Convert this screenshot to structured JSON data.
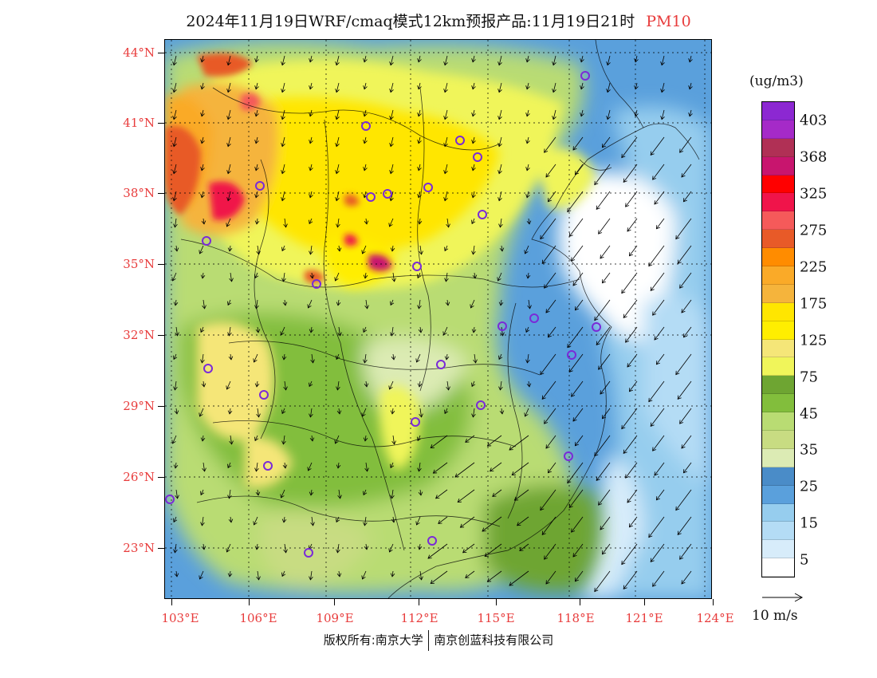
{
  "title": {
    "main": "2024年11月19日WRF/cmaq模式12km预报产品:11月19日21时",
    "pollutant": "PM10"
  },
  "map": {
    "lat_labels": [
      "44°N",
      "41°N",
      "38°N",
      "35°N",
      "32°N",
      "29°N",
      "26°N",
      "23°N"
    ],
    "lon_labels": [
      "103°E",
      "106°E",
      "109°E",
      "112°E",
      "115°E",
      "118°E",
      "121°E",
      "124°E"
    ],
    "frame_color": "#000000",
    "station_marker_color": "#7a2ad8",
    "station_count": 26
  },
  "legend": {
    "unit": "(ug/m3)",
    "labels": [
      "403",
      "368",
      "325",
      "275",
      "225",
      "175",
      "125",
      "75",
      "45",
      "35",
      "25",
      "15",
      "5"
    ],
    "colors": [
      "#8c28d2",
      "#a52ac8",
      "#b03055",
      "#c8156e",
      "#ff0000",
      "#f0144a",
      "#f55a5a",
      "#e85a28",
      "#ff8c00",
      "#faaa28",
      "#f5b43c",
      "#ffe600",
      "#ffee00",
      "#f5e678",
      "#f0f55a",
      "#6ea532",
      "#82be3c",
      "#b9dc73",
      "#c8dc82",
      "#dcebb4",
      "#4a8cc8",
      "#5aa0dc",
      "#96cdee",
      "#b4dcf5",
      "#d7ecfa",
      "#ffffff"
    ]
  },
  "wind_reference": {
    "label": "10 m/s"
  },
  "footer": {
    "left": "版权所有:南京大学",
    "right": "南京创蓝科技有限公司"
  }
}
